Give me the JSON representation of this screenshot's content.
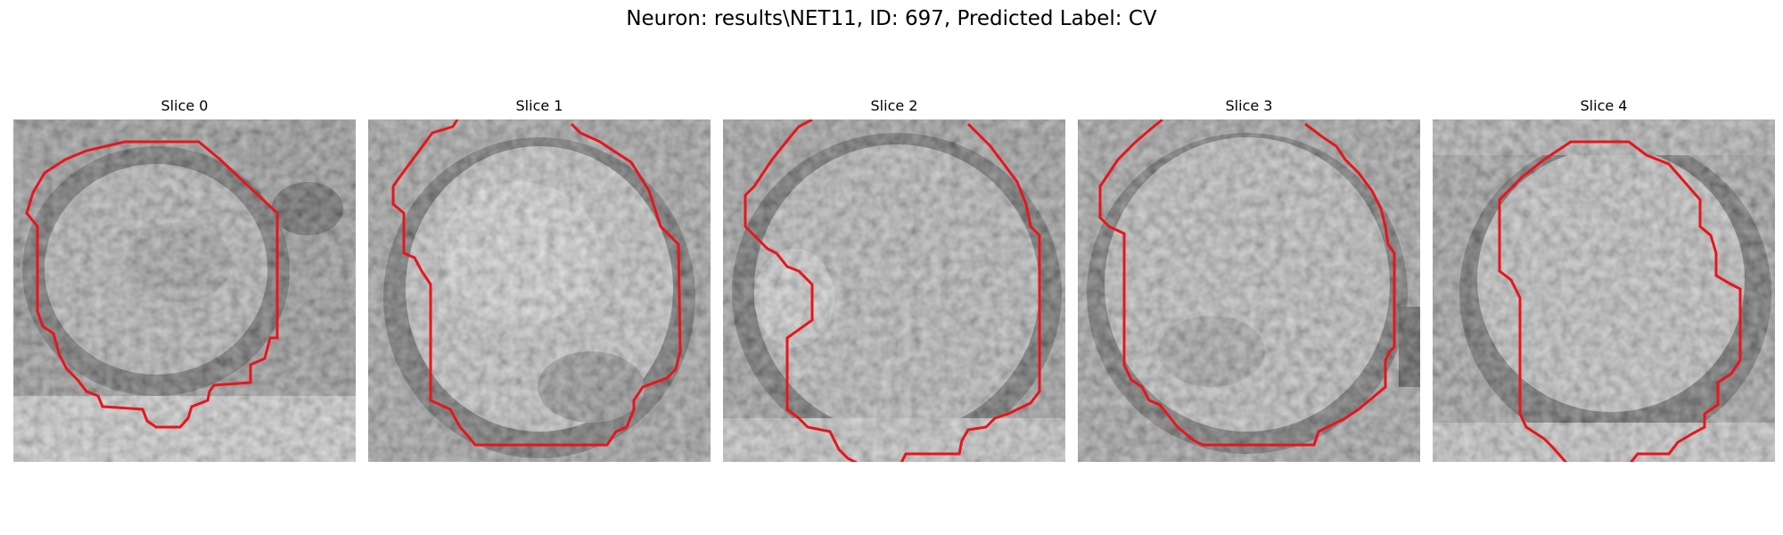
{
  "figure": {
    "title": "Neuron: results\\NET11, ID: 697, Predicted Label: CV"
  },
  "panels": [
    {
      "title": "Slice 0"
    },
    {
      "title": "Slice 1"
    },
    {
      "title": "Slice 2"
    },
    {
      "title": "Slice 3"
    },
    {
      "title": "Slice 4"
    }
  ],
  "colors": {
    "contour": "#e8151b",
    "background": "#ffffff"
  }
}
